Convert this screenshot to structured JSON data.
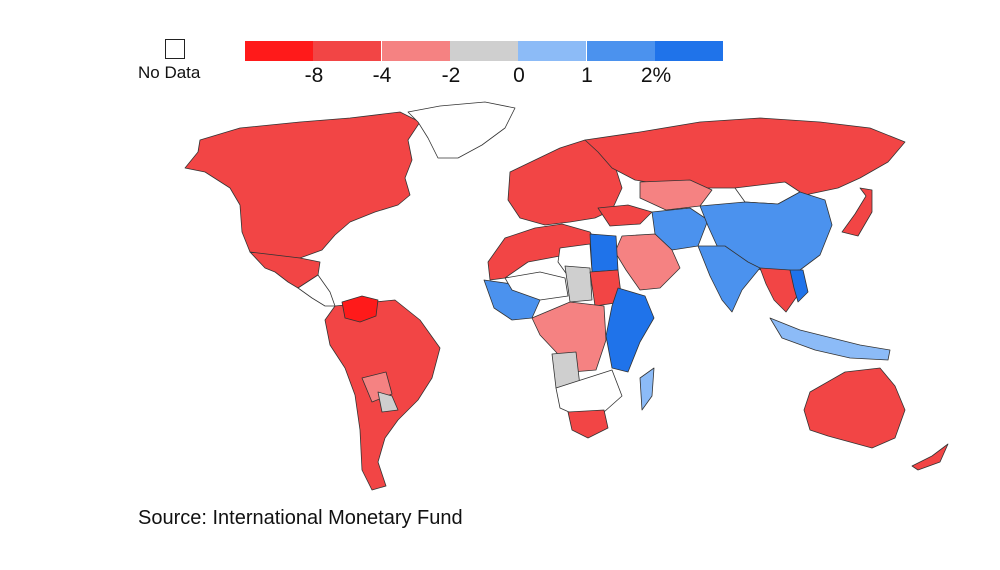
{
  "legend": {
    "no_data_label": "No Data",
    "ticks": [
      "-8",
      "-4",
      "-2",
      "0",
      "1",
      "2%"
    ],
    "bins": [
      {
        "color": "#ff1a1a"
      },
      {
        "color": "#f24545"
      },
      {
        "color": "#f58282"
      },
      {
        "color": "#cfcfcf"
      },
      {
        "color": "#8cbbf7"
      },
      {
        "color": "#4b92ee"
      },
      {
        "color": "#1f73ea"
      }
    ]
  },
  "source": "Source: International Monetary Fund",
  "colors": {
    "strong_red": "#ff1a1a",
    "red": "#f24545",
    "light_red": "#f58282",
    "gray": "#cfcfcf",
    "light_blue": "#8cbbf7",
    "blue": "#4b92ee",
    "strong_blue": "#1f73ea",
    "no_data": "#ffffff"
  },
  "regions": [
    {
      "name": "north-america",
      "class": "red"
    },
    {
      "name": "greenland",
      "class": "no_data"
    },
    {
      "name": "mexico",
      "class": "red"
    },
    {
      "name": "central-america",
      "class": "no_data"
    },
    {
      "name": "venezuela",
      "class": "strong_red"
    },
    {
      "name": "south-america",
      "class": "red"
    },
    {
      "name": "bolivia",
      "class": "light_red"
    },
    {
      "name": "paraguay",
      "class": "gray"
    },
    {
      "name": "europe",
      "class": "red"
    },
    {
      "name": "russia",
      "class": "red"
    },
    {
      "name": "kazakhstan",
      "class": "light_red"
    },
    {
      "name": "china",
      "class": "blue"
    },
    {
      "name": "mongolia",
      "class": "no_data"
    },
    {
      "name": "india",
      "class": "blue"
    },
    {
      "name": "iran",
      "class": "blue"
    },
    {
      "name": "arabia",
      "class": "light_red"
    },
    {
      "name": "turkey",
      "class": "red"
    },
    {
      "name": "japan",
      "class": "red"
    },
    {
      "name": "southeast-asia",
      "class": "red"
    },
    {
      "name": "vietnam",
      "class": "strong_blue"
    },
    {
      "name": "indonesia",
      "class": "light_blue"
    },
    {
      "name": "australia",
      "class": "red"
    },
    {
      "name": "new-zealand",
      "class": "red"
    },
    {
      "name": "north-africa",
      "class": "red"
    },
    {
      "name": "egypt",
      "class": "strong_blue"
    },
    {
      "name": "libya",
      "class": "no_data"
    },
    {
      "name": "west-africa",
      "class": "blue"
    },
    {
      "name": "sahel",
      "class": "no_data"
    },
    {
      "name": "central-africa",
      "class": "light_red"
    },
    {
      "name": "chad",
      "class": "gray"
    },
    {
      "name": "sudan",
      "class": "red"
    },
    {
      "name": "east-africa",
      "class": "strong_blue"
    },
    {
      "name": "southern-africa",
      "class": "no_data"
    },
    {
      "name": "angola",
      "class": "gray"
    },
    {
      "name": "south-africa",
      "class": "red"
    },
    {
      "name": "madagascar",
      "class": "light_blue"
    }
  ]
}
